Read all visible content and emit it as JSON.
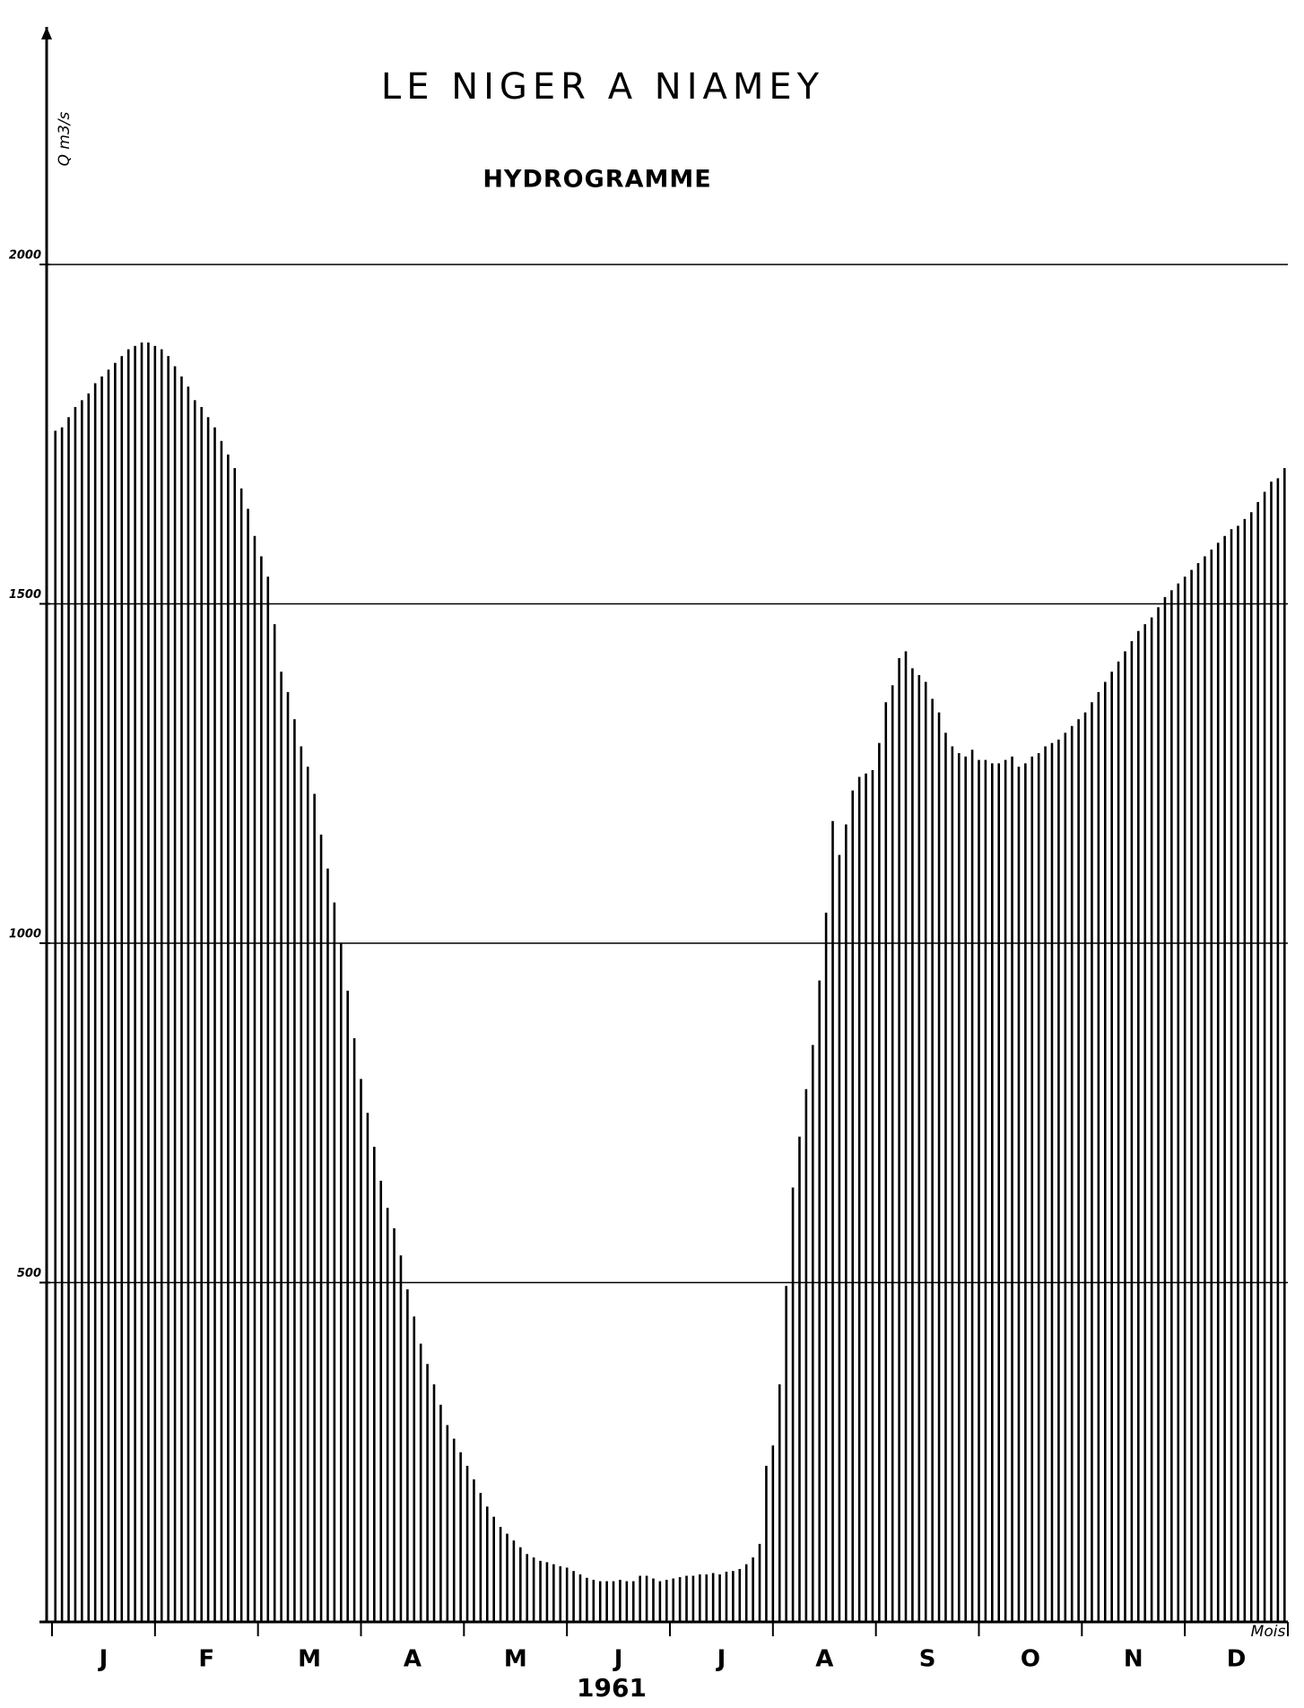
{
  "chart_data": {
    "type": "bar",
    "title": "LE NIGER A NIAMEY",
    "subtitle": "HYDROGRAMME",
    "y_label": "Q m3/s",
    "x_label": "Mois",
    "year": "1961",
    "months": [
      "J",
      "F",
      "M",
      "A",
      "M",
      "J",
      "J",
      "A",
      "S",
      "O",
      "N",
      "D"
    ],
    "values": [
      1755,
      1760,
      1775,
      1790,
      1800,
      1810,
      1825,
      1835,
      1845,
      1855,
      1865,
      1875,
      1880,
      1885,
      1885,
      1880,
      1875,
      1865,
      1850,
      1835,
      1820,
      1800,
      1790,
      1775,
      1760,
      1740,
      1720,
      1700,
      1670,
      1640,
      1600,
      1570,
      1540,
      1470,
      1400,
      1370,
      1330,
      1290,
      1260,
      1220,
      1160,
      1110,
      1060,
      1000,
      930,
      860,
      800,
      750,
      700,
      650,
      610,
      580,
      540,
      490,
      450,
      410,
      380,
      350,
      320,
      290,
      270,
      250,
      230,
      210,
      190,
      170,
      155,
      140,
      130,
      120,
      110,
      100,
      95,
      90,
      88,
      85,
      82,
      80,
      75,
      70,
      65,
      62,
      60,
      60,
      60,
      62,
      60,
      60,
      68,
      68,
      64,
      60,
      62,
      64,
      66,
      68,
      68,
      70,
      70,
      72,
      70,
      74,
      75,
      78,
      85,
      95,
      115,
      230,
      260,
      350,
      495,
      640,
      715,
      785,
      850,
      945,
      1045,
      1180,
      1130,
      1175,
      1225,
      1245,
      1250,
      1255,
      1295,
      1355,
      1380,
      1420,
      1430,
      1405,
      1395,
      1385,
      1360,
      1340,
      1310,
      1290,
      1280,
      1275,
      1285,
      1270,
      1270,
      1265,
      1265,
      1270,
      1275,
      1260,
      1265,
      1275,
      1280,
      1290,
      1295,
      1300,
      1310,
      1320,
      1330,
      1340,
      1355,
      1370,
      1385,
      1400,
      1415,
      1430,
      1445,
      1460,
      1470,
      1480,
      1495,
      1510,
      1520,
      1530,
      1540,
      1550,
      1560,
      1570,
      1580,
      1590,
      1600,
      1610,
      1615,
      1625,
      1635,
      1650,
      1665,
      1680,
      1685,
      1700
    ],
    "color": "#000000",
    "ylim": [
      0,
      2350
    ],
    "yticks": [
      500,
      1000,
      1500,
      2000
    ],
    "grid": true
  }
}
